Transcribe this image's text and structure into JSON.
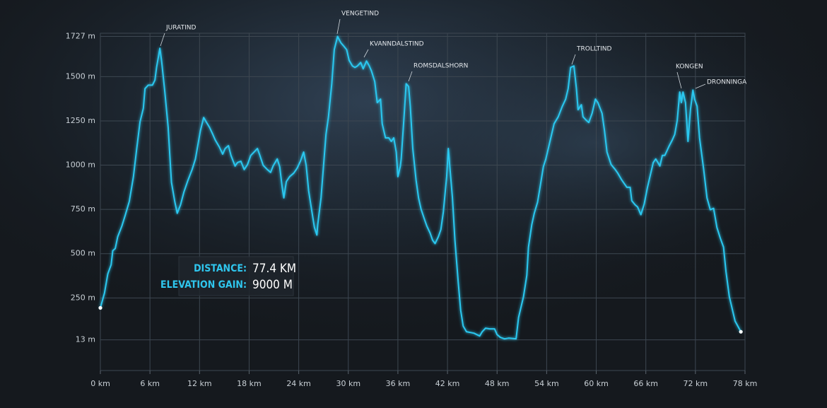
{
  "chart_data": {
    "type": "line",
    "color": "#2cc8f0",
    "grid": true,
    "xlim": [
      0,
      78
    ],
    "ylim": [
      -160,
      1745
    ],
    "xticks": [
      {
        "value": 0,
        "label": "0 km"
      },
      {
        "value": 6,
        "label": "6 km"
      },
      {
        "value": 12,
        "label": "12 km"
      },
      {
        "value": 18,
        "label": "18 km"
      },
      {
        "value": 24,
        "label": "24 km"
      },
      {
        "value": 30,
        "label": "30 km"
      },
      {
        "value": 36,
        "label": "36 km"
      },
      {
        "value": 42,
        "label": "42 km"
      },
      {
        "value": 48,
        "label": "48 km"
      },
      {
        "value": 54,
        "label": "54 km"
      },
      {
        "value": 60,
        "label": "60 km"
      },
      {
        "value": 66,
        "label": "66 km"
      },
      {
        "value": 72,
        "label": "72 km"
      },
      {
        "value": 78,
        "label": "78 km"
      }
    ],
    "yticks": [
      {
        "value": 13,
        "label": "13 m"
      },
      {
        "value": 250,
        "label": "250 m"
      },
      {
        "value": 500,
        "label": "500 m"
      },
      {
        "value": 750,
        "label": "750 m"
      },
      {
        "value": 1000,
        "label": "1000 m"
      },
      {
        "value": 1250,
        "label": "1250 m"
      },
      {
        "value": 1500,
        "label": "1500 m"
      },
      {
        "value": 1727,
        "label": "1727 m"
      }
    ],
    "x": [
      0,
      0.5,
      0.9,
      1.3,
      1.5,
      1.8,
      2.1,
      2.6,
      3.0,
      3.5,
      4.0,
      4.4,
      4.8,
      5.2,
      5.4,
      5.8,
      6.3,
      6.6,
      6.8,
      7.2,
      7.4,
      7.8,
      8.2,
      8.6,
      9.0,
      9.3,
      9.7,
      10.1,
      10.6,
      11.1,
      11.5,
      11.8,
      12.1,
      12.5,
      12.8,
      13.2,
      13.6,
      13.9,
      14.4,
      14.8,
      15.1,
      15.5,
      15.8,
      16.3,
      16.6,
      17.0,
      17.4,
      17.8,
      18.2,
      18.6,
      19.0,
      19.3,
      19.7,
      20.2,
      20.6,
      20.9,
      21.4,
      21.7,
      22.0,
      22.2,
      22.5,
      22.9,
      23.4,
      23.8,
      24.2,
      24.6,
      24.9,
      25.2,
      25.6,
      25.9,
      26.2,
      26.3,
      26.7,
      27.0,
      27.3,
      27.6,
      28.0,
      28.3,
      28.7,
      29.1,
      29.4,
      29.8,
      30.1,
      30.5,
      30.8,
      31.1,
      31.5,
      31.8,
      32.2,
      32.5,
      32.8,
      33.2,
      33.5,
      33.9,
      34.1,
      34.5,
      34.9,
      35.2,
      35.5,
      35.8,
      36.0,
      36.3,
      36.4,
      36.8,
      37.0,
      37.3,
      37.5,
      37.8,
      38.2,
      38.5,
      38.8,
      39.2,
      39.5,
      39.9,
      40.2,
      40.5,
      40.9,
      41.2,
      41.5,
      41.9,
      42.1,
      42.6,
      42.9,
      43.3,
      43.6,
      43.9,
      44.3,
      45.2,
      45.9,
      46.2,
      46.6,
      47.1,
      47.7,
      48.0,
      48.4,
      48.9,
      49.4,
      50.3,
      50.6,
      51.2,
      51.6,
      51.8,
      52.2,
      52.5,
      52.9,
      53.2,
      53.6,
      53.9,
      54.2,
      54.6,
      54.9,
      55.4,
      55.9,
      56.3,
      56.6,
      56.9,
      57.3,
      57.6,
      57.8,
      58.2,
      58.4,
      58.8,
      59.1,
      59.5,
      59.9,
      60.2,
      60.7,
      61.0,
      61.3,
      61.8,
      62.3,
      62.6,
      63.1,
      63.4,
      63.7,
      64.1,
      64.3,
      64.7,
      65.0,
      65.4,
      65.8,
      66.2,
      66.6,
      66.9,
      67.2,
      67.7,
      68.0,
      68.3,
      68.8,
      69.2,
      69.5,
      69.8,
      70.1,
      70.3,
      70.5,
      70.8,
      71.1,
      71.4,
      71.7,
      71.9,
      72.2,
      72.5,
      73.0,
      73.4,
      73.8,
      74.2,
      74.6,
      75.0,
      75.4,
      75.7,
      76.1,
      76.8,
      77.5
    ],
    "values": [
      194,
      278,
      386,
      437,
      517,
      529,
      596,
      656,
      716,
      795,
      935,
      1094,
      1245,
      1321,
      1432,
      1452,
      1452,
      1480,
      1552,
      1660,
      1592,
      1413,
      1214,
      903,
      795,
      728,
      776,
      847,
      915,
      975,
      1035,
      1114,
      1194,
      1269,
      1245,
      1214,
      1174,
      1142,
      1102,
      1062,
      1094,
      1110,
      1055,
      995,
      1015,
      1022,
      975,
      1003,
      1055,
      1074,
      1094,
      1055,
      999,
      975,
      959,
      995,
      1035,
      991,
      875,
      815,
      907,
      935,
      955,
      982,
      1022,
      1074,
      999,
      855,
      736,
      648,
      605,
      664,
      815,
      995,
      1174,
      1273,
      1460,
      1652,
      1727,
      1691,
      1675,
      1652,
      1592,
      1560,
      1552,
      1560,
      1580,
      1544,
      1588,
      1564,
      1532,
      1472,
      1353,
      1373,
      1234,
      1154,
      1154,
      1134,
      1154,
      1074,
      935,
      995,
      1035,
      1313,
      1460,
      1444,
      1333,
      1094,
      915,
      815,
      752,
      696,
      656,
      616,
      576,
      557,
      596,
      636,
      736,
      935,
      1094,
      815,
      576,
      338,
      179,
      91,
      59,
      51,
      35,
      59,
      79,
      75,
      75,
      43,
      27,
      19,
      23,
      19,
      139,
      258,
      378,
      537,
      664,
      728,
      791,
      875,
      991,
      1035,
      1094,
      1174,
      1234,
      1273,
      1333,
      1373,
      1432,
      1552,
      1560,
      1432,
      1313,
      1341,
      1273,
      1253,
      1241,
      1293,
      1373,
      1353,
      1293,
      1194,
      1074,
      1003,
      975,
      955,
      915,
      895,
      875,
      875,
      799,
      776,
      764,
      720,
      780,
      875,
      955,
      1015,
      1035,
      995,
      1055,
      1055,
      1106,
      1142,
      1174,
      1253,
      1413,
      1353,
      1413,
      1353,
      1134,
      1313,
      1424,
      1373,
      1333,
      1154,
      975,
      815,
      748,
      756,
      648,
      589,
      537,
      398,
      258,
      119,
      59
    ],
    "annotations": [
      "JURATIND",
      "VENGETIND",
      "KVANNDALSTIND",
      "ROMSDALSHORN",
      "TROLLTIND",
      "KONGEN",
      "DRONNINGA"
    ],
    "stats": [
      {
        "label": "DISTANCE:",
        "value": "77.4 KM"
      },
      {
        "label": "ELEVATION GAIN:",
        "value": "9000 M"
      }
    ]
  }
}
